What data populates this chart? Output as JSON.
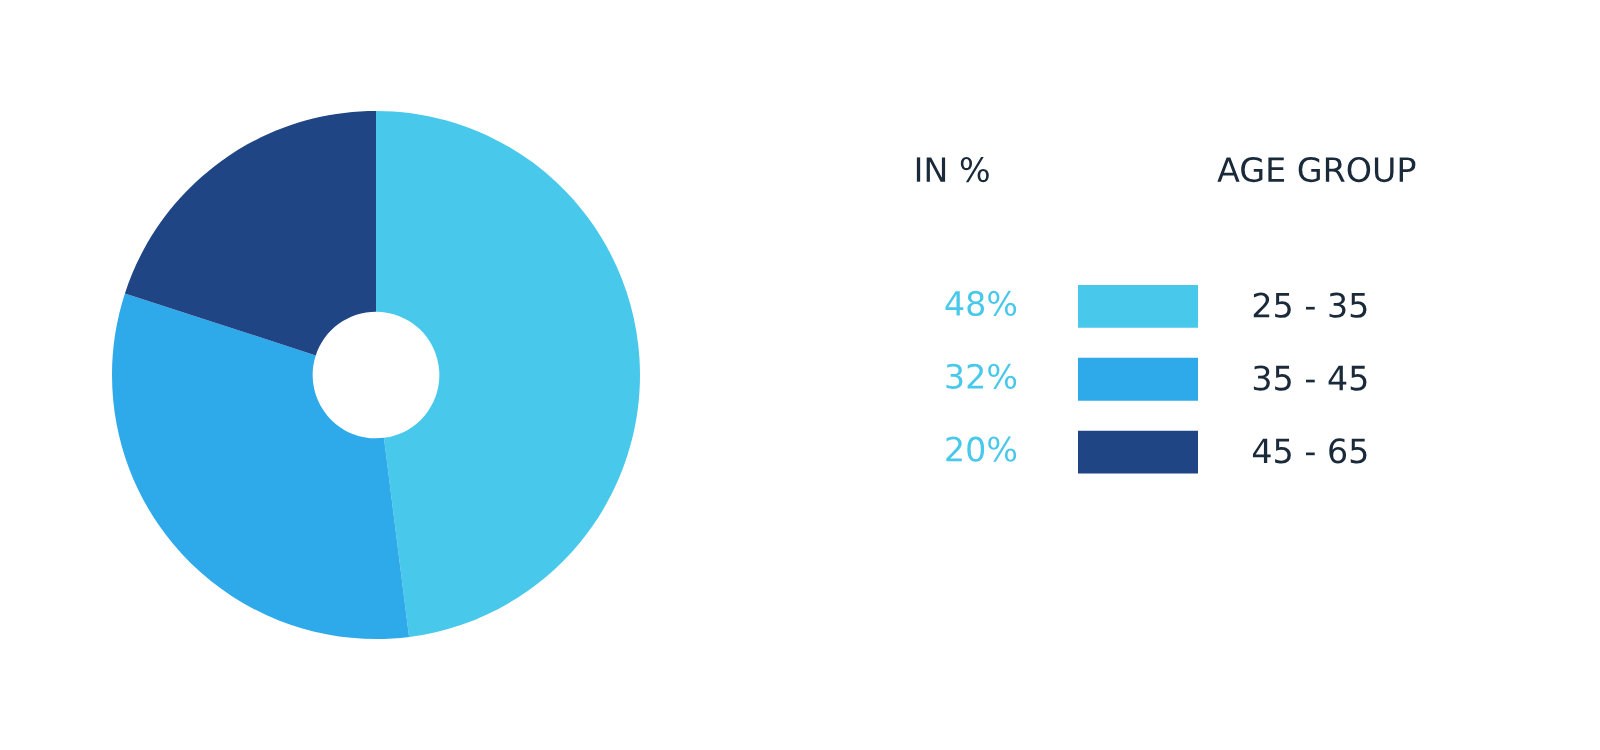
{
  "chart_data": {
    "type": "donut",
    "categories": [
      "25 - 35",
      "35 - 45",
      "45 - 65"
    ],
    "values": [
      48,
      32,
      20
    ],
    "value_labels": [
      "48%",
      "32%",
      "20%"
    ],
    "colors": [
      "#48c8ea",
      "#2eaaeb",
      "#1f4585"
    ],
    "legend_title": "AGE GROUP",
    "annotations": [
      "IN %"
    ],
    "legend": "right"
  }
}
